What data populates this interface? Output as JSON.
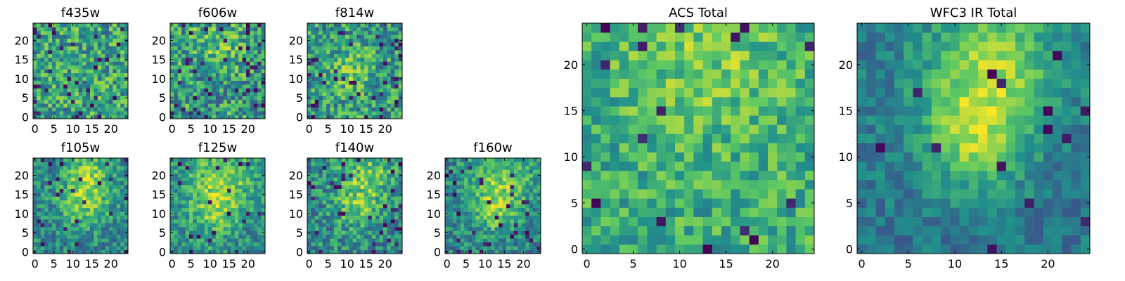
{
  "figure": {
    "background": "#ffffff"
  },
  "colormap": {
    "name": "viridis",
    "stops": [
      "#440154",
      "#3b528b",
      "#21918c",
      "#5ec962",
      "#fde725"
    ]
  },
  "chart_data": [
    {
      "type": "heatmap",
      "title": "f435w",
      "grid_size": 25,
      "xticks": [
        0,
        5,
        10,
        15,
        20
      ],
      "yticks": [
        0,
        5,
        10,
        15,
        20
      ],
      "xlim": [
        0,
        24
      ],
      "ylim": [
        0,
        24
      ],
      "seed": 11,
      "low_mean": 0.58,
      "noise": 0.28,
      "blobs": [],
      "dark_pixels": 0.05
    },
    {
      "type": "heatmap",
      "title": "f606w",
      "grid_size": 25,
      "xticks": [
        0,
        5,
        10,
        15,
        20
      ],
      "yticks": [
        0,
        5,
        10,
        15,
        20
      ],
      "xlim": [
        0,
        24
      ],
      "ylim": [
        0,
        24
      ],
      "seed": 23,
      "low_mean": 0.55,
      "noise": 0.28,
      "blobs": [
        {
          "x": 12,
          "y": 19,
          "amp": 0.15,
          "r": 5
        }
      ],
      "dark_pixels": 0.07
    },
    {
      "type": "heatmap",
      "title": "f814w",
      "grid_size": 25,
      "xticks": [
        0,
        5,
        10,
        15,
        20
      ],
      "yticks": [
        0,
        5,
        10,
        15,
        20
      ],
      "xlim": [
        0,
        24
      ],
      "ylim": [
        0,
        24
      ],
      "seed": 37,
      "low_mean": 0.55,
      "noise": 0.27,
      "blobs": [
        {
          "x": 11,
          "y": 12,
          "amp": 0.18,
          "r": 4
        }
      ],
      "dark_pixels": 0.06
    },
    {
      "type": "heatmap",
      "title": "f105w",
      "grid_size": 25,
      "xticks": [
        0,
        5,
        10,
        15,
        20
      ],
      "yticks": [
        0,
        5,
        10,
        15,
        20
      ],
      "xlim": [
        0,
        24
      ],
      "ylim": [
        0,
        24
      ],
      "seed": 41,
      "low_mean": 0.45,
      "noise": 0.2,
      "blobs": [
        {
          "x": 13,
          "y": 13,
          "amp": 0.32,
          "r": 5
        },
        {
          "x": 14,
          "y": 21,
          "amp": 0.28,
          "r": 4
        }
      ],
      "dark_pixels": 0.05
    },
    {
      "type": "heatmap",
      "title": "f125w",
      "grid_size": 25,
      "xticks": [
        0,
        5,
        10,
        15,
        20
      ],
      "yticks": [
        0,
        5,
        10,
        15,
        20
      ],
      "xlim": [
        0,
        24
      ],
      "ylim": [
        0,
        24
      ],
      "seed": 53,
      "low_mean": 0.5,
      "noise": 0.2,
      "blobs": [
        {
          "x": 13,
          "y": 18,
          "amp": 0.3,
          "r": 6
        },
        {
          "x": 11,
          "y": 10,
          "amp": 0.2,
          "r": 4
        }
      ],
      "dark_pixels": 0.04
    },
    {
      "type": "heatmap",
      "title": "f140w",
      "grid_size": 25,
      "xticks": [
        0,
        5,
        10,
        15,
        20
      ],
      "yticks": [
        0,
        5,
        10,
        15,
        20
      ],
      "xlim": [
        0,
        24
      ],
      "ylim": [
        0,
        24
      ],
      "seed": 67,
      "low_mean": 0.48,
      "noise": 0.22,
      "blobs": [
        {
          "x": 15,
          "y": 20,
          "amp": 0.3,
          "r": 5
        },
        {
          "x": 12,
          "y": 11,
          "amp": 0.22,
          "r": 4
        }
      ],
      "dark_pixels": 0.05
    },
    {
      "type": "heatmap",
      "title": "f160w",
      "grid_size": 25,
      "xticks": [
        0,
        5,
        10,
        15,
        20
      ],
      "yticks": [
        0,
        5,
        10,
        15,
        20
      ],
      "xlim": [
        0,
        24
      ],
      "ylim": [
        0,
        24
      ],
      "seed": 79,
      "low_mean": 0.45,
      "noise": 0.2,
      "blobs": [
        {
          "x": 14,
          "y": 19,
          "amp": 0.33,
          "r": 6
        },
        {
          "x": 12,
          "y": 10,
          "amp": 0.22,
          "r": 4
        }
      ],
      "dark_pixels": 0.06
    },
    {
      "type": "heatmap",
      "title": "ACS Total",
      "grid_size": 25,
      "xticks": [
        0,
        5,
        10,
        15,
        20
      ],
      "yticks": [
        0,
        5,
        10,
        15,
        20
      ],
      "xlim": [
        0,
        24
      ],
      "ylim": [
        0,
        24
      ],
      "seed": 97,
      "low_mean": 0.62,
      "noise": 0.2,
      "blobs": [
        {
          "x": 13,
          "y": 20,
          "amp": 0.15,
          "r": 6
        }
      ],
      "dark_pixels": 0.035
    },
    {
      "type": "heatmap",
      "title": "WFC3 IR Total",
      "grid_size": 25,
      "xticks": [
        0,
        5,
        10,
        15,
        20
      ],
      "yticks": [
        0,
        5,
        10,
        15,
        20
      ],
      "xlim": [
        0,
        24
      ],
      "ylim": [
        0,
        24
      ],
      "seed": 131,
      "low_mean": 0.4,
      "noise": 0.13,
      "blobs": [
        {
          "x": 14,
          "y": 20,
          "amp": 0.42,
          "r": 5
        },
        {
          "x": 12,
          "y": 12,
          "amp": 0.38,
          "r": 4
        }
      ],
      "dark_pixels": 0.03
    }
  ]
}
